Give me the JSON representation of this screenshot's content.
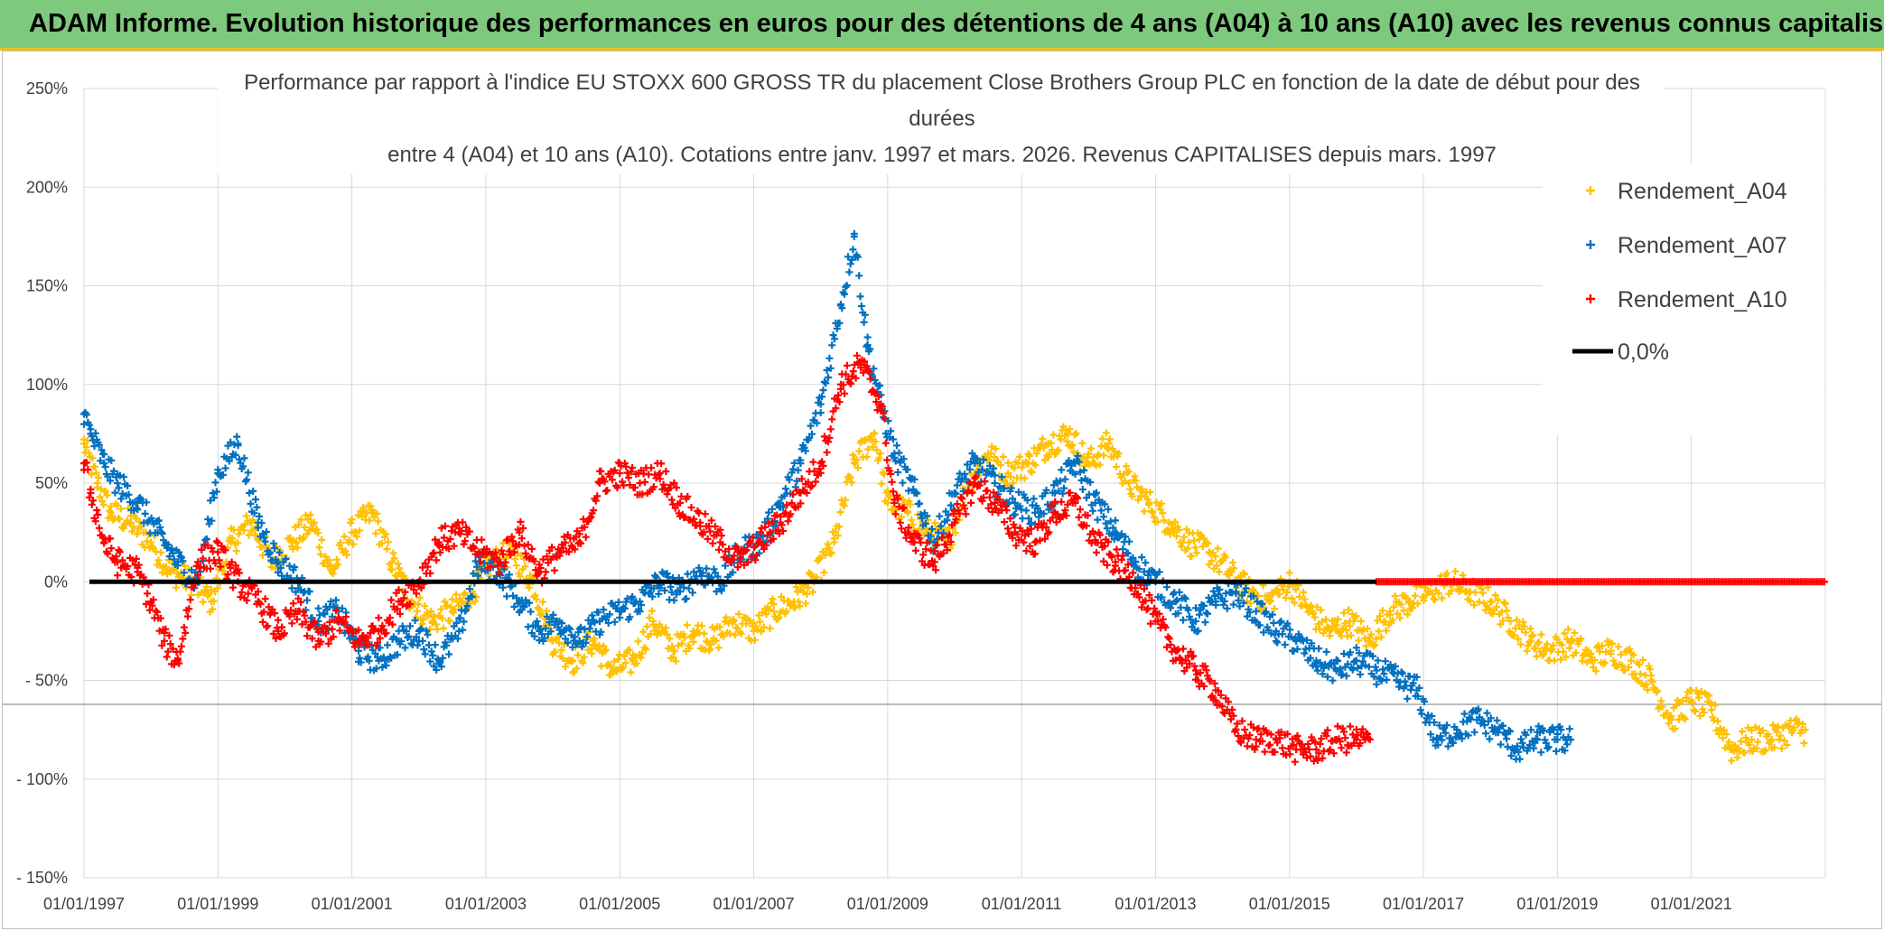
{
  "banner": {
    "title": "ADAM Informe. Evolution historique des performances en euros pour des détentions de 4 ans (A04) à 10 ans (A10) avec les revenus connus capitalisés"
  },
  "colors": {
    "A04": "#ffc000",
    "A07": "#0070c0",
    "A10": "#ff0000",
    "zero": "#000000",
    "grid": "#d9d9d9",
    "banner_bg": "#7dc97d",
    "banner_border": "#e7c21a"
  },
  "chart_data": {
    "type": "scatter",
    "title_lines": [
      "Performance par rapport à l'indice EU STOXX 600 GROSS TR  du placement Close Brothers Group PLC en fonction de la date de début pour des",
      "durées",
      "entre 4 (A04) et 10 ans (A10). Cotations entre janv. 1997 et mars. 2026. Revenus CAPITALISES depuis mars. 1997"
    ],
    "ylim": [
      -150,
      250
    ],
    "xlim": [
      1997.0,
      2023.0
    ],
    "y_ticks": [
      250,
      200,
      150,
      100,
      50,
      0,
      -50,
      -100,
      -150
    ],
    "y_tick_labels": [
      "250%",
      "200%",
      "150%",
      "100%",
      "50%",
      "0%",
      "- 50%",
      "- 100%",
      "- 150%"
    ],
    "x_ticks": [
      1997,
      1999,
      2001,
      2003,
      2005,
      2007,
      2009,
      2011,
      2013,
      2015,
      2017,
      2019,
      2021
    ],
    "x_tick_labels": [
      "01/01/1997",
      "01/01/1999",
      "01/01/2001",
      "01/01/2003",
      "01/01/2005",
      "01/01/2007",
      "01/01/2009",
      "01/01/2011",
      "01/01/2013",
      "01/01/2015",
      "01/01/2017",
      "01/01/2019",
      "01/01/2021"
    ],
    "legend": {
      "position": "top-right",
      "entries": [
        "Rendement_A04",
        "Rendement_A07",
        "Rendement_A10",
        "0,0%"
      ]
    },
    "series": [
      {
        "name": "Rendement_A04",
        "color_key": "A04",
        "x": [
          1997.0,
          1997.2,
          1997.4,
          1997.7,
          1998.0,
          1998.3,
          1998.6,
          1998.9,
          1999.2,
          1999.5,
          1999.8,
          2000.1,
          2000.4,
          2000.7,
          2001.0,
          2001.3,
          2001.6,
          2001.9,
          2002.2,
          2002.5,
          2002.8,
          2003.1,
          2003.4,
          2003.7,
          2004.0,
          2004.3,
          2004.6,
          2004.9,
          2005.2,
          2005.5,
          2005.8,
          2006.1,
          2006.4,
          2006.7,
          2007.0,
          2007.3,
          2007.6,
          2007.9,
          2008.2,
          2008.5,
          2008.8,
          2009.0,
          2009.3,
          2009.6,
          2009.9,
          2010.2,
          2010.5,
          2010.8,
          2011.1,
          2011.4,
          2011.7,
          2012.0,
          2012.3,
          2012.6,
          2012.9,
          2013.2,
          2013.5,
          2013.8,
          2014.1,
          2014.4,
          2014.7,
          2015.0,
          2015.3,
          2015.6,
          2015.9,
          2016.2,
          2016.5,
          2016.8,
          2017.1,
          2017.4,
          2017.7,
          2018.0,
          2018.3,
          2018.6,
          2018.9,
          2019.2,
          2019.5,
          2019.8,
          2020.1,
          2020.4,
          2020.7,
          2021.0,
          2021.3,
          2021.6,
          2021.9,
          2022.2,
          2022.5,
          2022.7
        ],
        "y": [
          70,
          50,
          35,
          30,
          20,
          5,
          0,
          -10,
          20,
          30,
          10,
          20,
          30,
          5,
          25,
          35,
          10,
          -10,
          -20,
          -15,
          -5,
          10,
          15,
          0,
          -30,
          -40,
          -30,
          -45,
          -40,
          -20,
          -35,
          -25,
          -30,
          -20,
          -25,
          -15,
          -10,
          0,
          20,
          60,
          75,
          40,
          35,
          25,
          20,
          50,
          65,
          55,
          60,
          70,
          75,
          60,
          70,
          50,
          40,
          30,
          20,
          15,
          5,
          -5,
          -10,
          0,
          -15,
          -25,
          -20,
          -30,
          -15,
          -10,
          -5,
          0,
          -5,
          -10,
          -20,
          -30,
          -35,
          -30,
          -40,
          -35,
          -40,
          -50,
          -70,
          -60,
          -65,
          -85,
          -80,
          -80,
          -75,
          -75
        ]
      },
      {
        "name": "Rendement_A07",
        "color_key": "A07",
        "x": [
          1997.0,
          1997.1,
          1997.3,
          1997.5,
          1997.8,
          1998.1,
          1998.4,
          1998.7,
          1999.0,
          1999.3,
          1999.6,
          1999.9,
          2000.2,
          2000.5,
          2000.8,
          2001.1,
          2001.4,
          2001.7,
          2002.0,
          2002.3,
          2002.6,
          2002.9,
          2003.2,
          2003.5,
          2003.8,
          2004.1,
          2004.4,
          2004.7,
          2005.0,
          2005.3,
          2005.6,
          2005.9,
          2006.2,
          2006.5,
          2006.8,
          2007.1,
          2007.4,
          2007.7,
          2008.0,
          2008.3,
          2008.5,
          2008.7,
          2008.9,
          2009.1,
          2009.4,
          2009.7,
          2010.0,
          2010.3,
          2010.6,
          2010.9,
          2011.2,
          2011.5,
          2011.8,
          2012.1,
          2012.4,
          2012.7,
          2013.0,
          2013.3,
          2013.6,
          2013.9,
          2014.2,
          2014.5,
          2014.8,
          2015.1,
          2015.4,
          2015.7,
          2016.0,
          2016.3,
          2016.6,
          2016.9,
          2017.2,
          2017.5,
          2017.8,
          2018.1,
          2018.4,
          2018.7,
          2019.0,
          2019.2
        ],
        "y": [
          85,
          75,
          60,
          50,
          40,
          25,
          10,
          0,
          55,
          70,
          30,
          10,
          0,
          -20,
          -15,
          -35,
          -40,
          -30,
          -25,
          -40,
          -25,
          10,
          5,
          -10,
          -25,
          -20,
          -30,
          -20,
          -15,
          -10,
          0,
          -5,
          5,
          0,
          15,
          20,
          40,
          60,
          90,
          140,
          175,
          120,
          90,
          65,
          45,
          20,
          45,
          60,
          50,
          40,
          35,
          45,
          60,
          40,
          25,
          10,
          0,
          -10,
          -20,
          -10,
          -5,
          -15,
          -25,
          -30,
          -40,
          -45,
          -40,
          -45,
          -50,
          -55,
          -80,
          -75,
          -70,
          -75,
          -85,
          -80,
          -80,
          -80
        ]
      },
      {
        "name": "Rendement_A10",
        "color_key": "A10",
        "x": [
          1997.0,
          1997.1,
          1997.3,
          1997.5,
          1997.8,
          1998.0,
          1998.2,
          1998.4,
          1998.7,
          1999.0,
          1999.3,
          1999.6,
          1999.9,
          2000.2,
          2000.5,
          2000.8,
          2001.1,
          2001.4,
          2001.7,
          2002.0,
          2002.3,
          2002.6,
          2002.9,
          2003.2,
          2003.5,
          2003.8,
          2004.1,
          2004.4,
          2004.7,
          2005.0,
          2005.3,
          2005.6,
          2005.9,
          2006.2,
          2006.5,
          2006.8,
          2007.1,
          2007.4,
          2007.7,
          2008.0,
          2008.3,
          2008.6,
          2008.9,
          2009.1,
          2009.4,
          2009.7,
          2010.0,
          2010.3,
          2010.6,
          2010.9,
          2011.2,
          2011.5,
          2011.8,
          2012.1,
          2012.4,
          2012.7,
          2013.0,
          2013.3,
          2013.6,
          2013.9,
          2014.2,
          2014.5,
          2014.8,
          2015.1,
          2015.4,
          2015.7,
          2016.0,
          2016.2
        ],
        "y": [
          60,
          45,
          20,
          10,
          5,
          -10,
          -30,
          -40,
          10,
          15,
          0,
          -10,
          -25,
          -15,
          -30,
          -20,
          -30,
          -25,
          -10,
          0,
          20,
          25,
          15,
          10,
          25,
          5,
          15,
          20,
          50,
          55,
          50,
          55,
          40,
          30,
          20,
          10,
          20,
          30,
          45,
          60,
          100,
          110,
          90,
          40,
          20,
          10,
          30,
          50,
          40,
          25,
          20,
          35,
          40,
          20,
          10,
          0,
          -20,
          -35,
          -45,
          -55,
          -75,
          -80,
          -80,
          -85,
          -85,
          -80,
          -80,
          -80
        ]
      }
    ],
    "a10_zero_run": {
      "x_start": 2016.3,
      "x_end": 2023.0,
      "y": 0
    }
  }
}
